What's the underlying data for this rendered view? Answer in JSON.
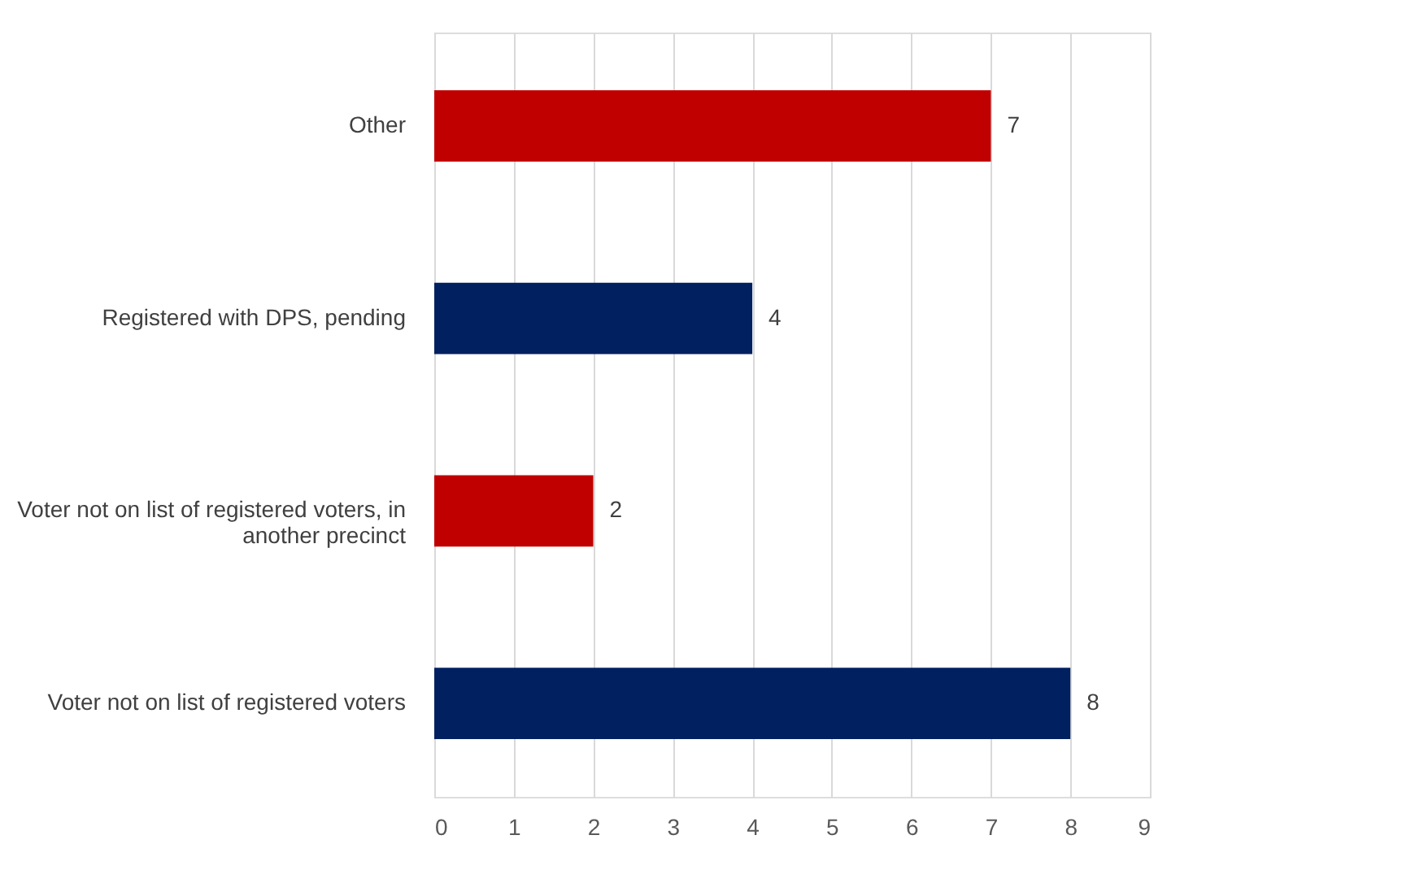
{
  "chart_data": {
    "type": "bar",
    "orientation": "horizontal",
    "categories": [
      "Other",
      "Registered with DPS, pending",
      "Voter not on list of registered voters, in another precinct",
      "Voter not on list of registered voters"
    ],
    "values": [
      7,
      4,
      2,
      8
    ],
    "colors": [
      "#c00000",
      "#002060",
      "#c00000",
      "#002060"
    ],
    "xlim": [
      0,
      9
    ],
    "xticks": [
      0,
      1,
      2,
      3,
      4,
      5,
      6,
      7,
      8,
      9
    ],
    "grid": "x",
    "data_labels": true
  }
}
